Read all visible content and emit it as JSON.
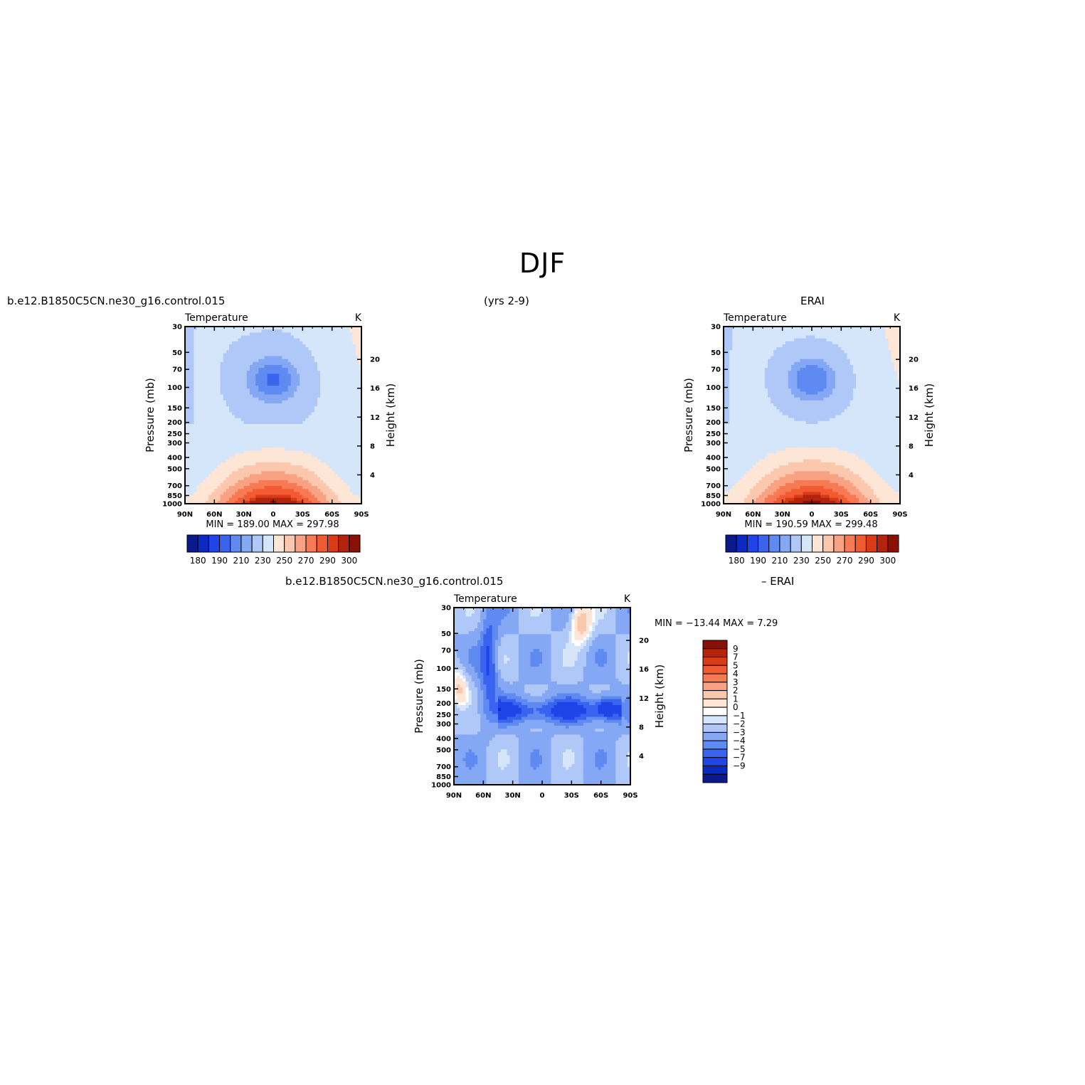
{
  "title": "DJF",
  "headers": {
    "model_case_top": "b.e12.B1850C5CN.ne30_g16.control.015",
    "years": "(yrs 2-9)",
    "obs": "ERAI",
    "model_case_bottom": "b.e12.B1850C5CN.ne30_g16.control.015",
    "diff_suffix": "– ERAI"
  },
  "chart_data": [
    {
      "type": "contour",
      "panel": "model",
      "variable_label": "Temperature",
      "units_label": "K",
      "ylabel": "Pressure (mb)",
      "y2label": "Height (km)",
      "x_ticks": [
        "90N",
        "60N",
        "30N",
        "0",
        "30S",
        "60S",
        "90S"
      ],
      "y_ticks": [
        "30",
        "50",
        "70",
        "100",
        "150",
        "200",
        "250",
        "300",
        "400",
        "500",
        "700",
        "850",
        "1000"
      ],
      "y2_ticks": [
        "20",
        "16",
        "12",
        "8",
        "4"
      ],
      "stats": "MIN = 189.00 MAX = 297.98",
      "min": 189.0,
      "max": 297.98,
      "colorbar_labels": [
        "180",
        "190",
        "210",
        "230",
        "250",
        "270",
        "290",
        "300"
      ],
      "colors": [
        "#0a1a8c",
        "#0b2ac4",
        "#1f45e8",
        "#3a64f0",
        "#5e8af2",
        "#85a8f5",
        "#afc8f8",
        "#d5e6fb",
        "#fde6d6",
        "#fbc8ae",
        "#f9a283",
        "#f77a55",
        "#f25a32",
        "#d83b16",
        "#b4230b",
        "#8a0f05"
      ]
    },
    {
      "type": "contour",
      "panel": "obs",
      "variable_label": "Temperature",
      "units_label": "K",
      "ylabel": "Pressure (mb)",
      "y2label": "Height (km)",
      "x_ticks": [
        "90N",
        "60N",
        "30N",
        "0",
        "30S",
        "60S",
        "90S"
      ],
      "y_ticks": [
        "30",
        "50",
        "70",
        "100",
        "150",
        "200",
        "250",
        "300",
        "400",
        "500",
        "700",
        "850",
        "1000"
      ],
      "y2_ticks": [
        "20",
        "16",
        "12",
        "8",
        "4"
      ],
      "stats": "MIN = 190.59 MAX = 299.48",
      "min": 190.59,
      "max": 299.48,
      "colorbar_labels": [
        "180",
        "190",
        "210",
        "230",
        "250",
        "270",
        "290",
        "300"
      ]
    },
    {
      "type": "contour",
      "panel": "difference",
      "variable_label": "Temperature",
      "units_label": "K",
      "ylabel": "Pressure (mb)",
      "y2label": "Height (km)",
      "x_ticks": [
        "90N",
        "60N",
        "30N",
        "0",
        "30S",
        "60S",
        "90S"
      ],
      "y_ticks": [
        "30",
        "50",
        "70",
        "100",
        "150",
        "200",
        "250",
        "300",
        "400",
        "500",
        "700",
        "850",
        "1000"
      ],
      "y2_ticks": [
        "20",
        "16",
        "12",
        "8",
        "4"
      ],
      "stats": "MIN = −13.44  MAX =    7.29",
      "min": -13.44,
      "max": 7.29,
      "colorbar_labels": [
        "9",
        "7",
        "5",
        "4",
        "3",
        "2",
        "1",
        "0",
        "−1",
        "−2",
        "−3",
        "−4",
        "−5",
        "−7",
        "−9"
      ],
      "colors": [
        "#8a0f05",
        "#b4230b",
        "#d83b16",
        "#f25a32",
        "#f77a55",
        "#f9a283",
        "#fbc8ae",
        "#fde6d6",
        "#ffffff",
        "#d5e6fb",
        "#afc8f8",
        "#85a8f5",
        "#5e8af2",
        "#3a64f0",
        "#1f45e8",
        "#0b2ac4",
        "#0a1a8c"
      ]
    }
  ]
}
